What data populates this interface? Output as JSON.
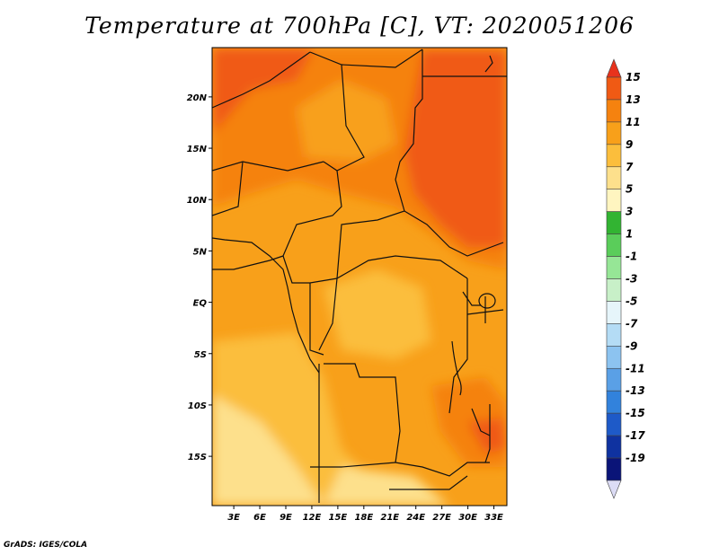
{
  "title": "Temperature at 700hPa [C], VT: 2020051206",
  "credit": "GrADS: IGES/COLA",
  "map": {
    "lat_ticks": [
      "20N",
      "15N",
      "10N",
      "5N",
      "EQ",
      "5S",
      "10S",
      "15S"
    ],
    "lat_values": [
      20,
      15,
      10,
      5,
      0,
      -5,
      -10,
      -15
    ],
    "lon_ticks": [
      "3E",
      "6E",
      "9E",
      "12E",
      "15E",
      "18E",
      "21E",
      "24E",
      "27E",
      "30E",
      "33E"
    ],
    "lon_values": [
      3,
      6,
      9,
      12,
      15,
      18,
      21,
      24,
      27,
      30,
      33
    ]
  },
  "colorbar": {
    "labels": [
      "15",
      "13",
      "11",
      "9",
      "7",
      "5",
      "3",
      "1",
      "-1",
      "-3",
      "-5",
      "-7",
      "-9",
      "-11",
      "-13",
      "-15",
      "-17",
      "-19"
    ],
    "colors": [
      "#e8321c",
      "#f05a14",
      "#f5820f",
      "#f8a01a",
      "#fbbe3c",
      "#fde08c",
      "#fff5c0",
      "#32b432",
      "#5acd5a",
      "#96e696",
      "#c8f0c8",
      "#e6f5fa",
      "#b4dcf5",
      "#8cc3f0",
      "#5aa0e6",
      "#3282dc",
      "#1e5ac8",
      "#0f32a0",
      "#0a1478",
      "#dcdcf5"
    ]
  }
}
